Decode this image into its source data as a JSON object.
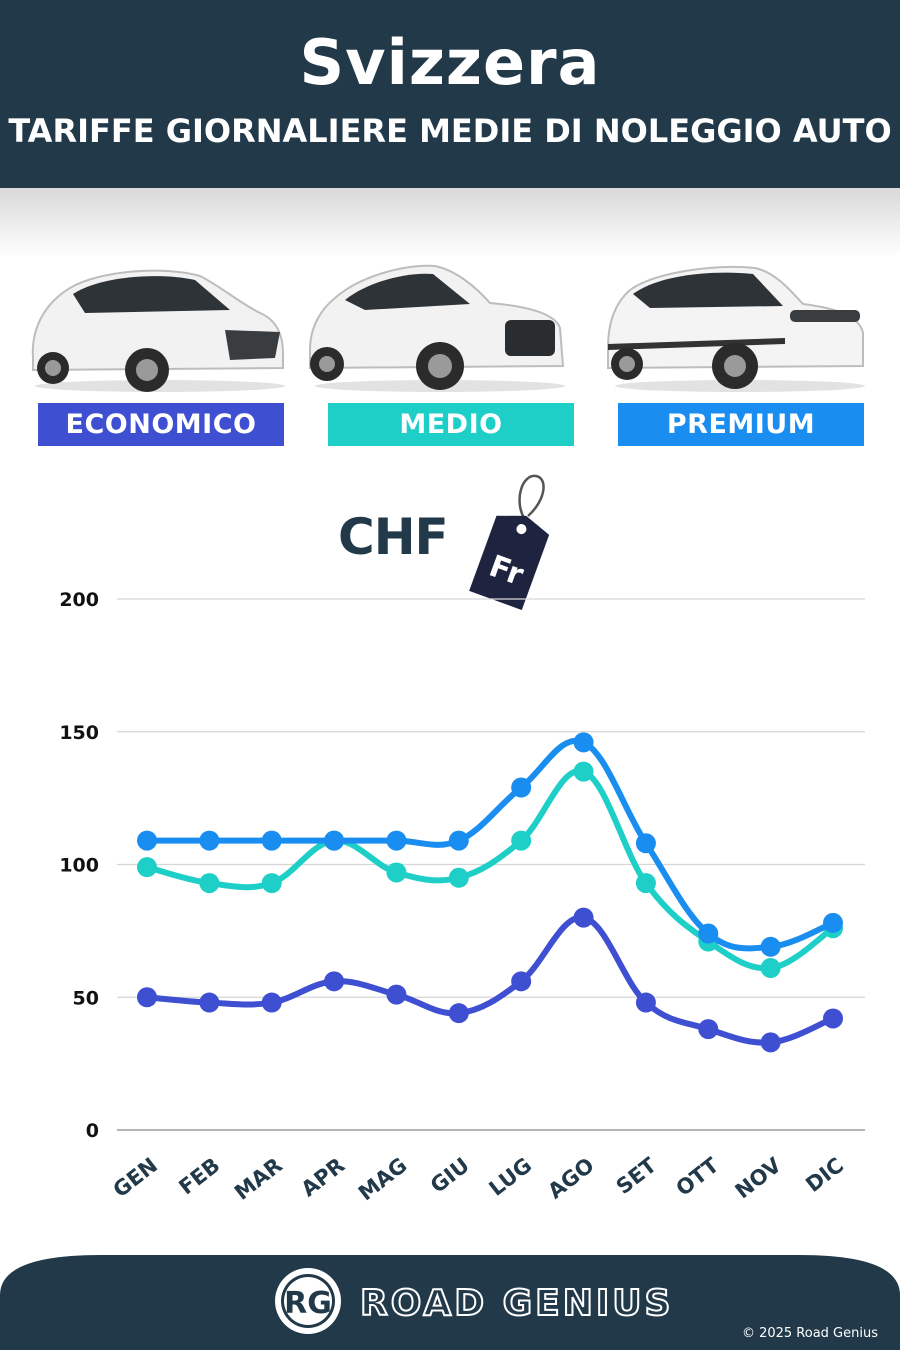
{
  "header": {
    "title": "Svizzera",
    "subtitle": "TARIFFE GIORNALIERE MEDIE DI NOLEGGIO AUTO"
  },
  "categories": [
    {
      "label": "ECONOMICO",
      "color": "#3f4fd1"
    },
    {
      "label": "MEDIO",
      "color": "#1ecfc8"
    },
    {
      "label": "PREMIUM",
      "color": "#1a8df0"
    }
  ],
  "currency": {
    "code": "CHF",
    "tag_text": "Fr"
  },
  "chart_data": {
    "type": "line",
    "x": [
      "GEN",
      "FEB",
      "MAR",
      "APR",
      "MAG",
      "GIU",
      "LUG",
      "AGO",
      "SET",
      "OTT",
      "NOV",
      "DIC"
    ],
    "yticks": [
      "0",
      "50",
      "100",
      "150",
      "200"
    ],
    "ylim": [
      0,
      200
    ],
    "grid": true,
    "series": [
      {
        "name": "ECONOMICO",
        "color": "#3f4fd1",
        "values": [
          50,
          48,
          48,
          56,
          51,
          44,
          56,
          80,
          48,
          38,
          33,
          42
        ]
      },
      {
        "name": "MEDIO",
        "color": "#1ecfc8",
        "values": [
          99,
          93,
          93,
          109,
          97,
          95,
          109,
          135,
          93,
          71,
          61,
          76
        ]
      },
      {
        "name": "PREMIUM",
        "color": "#1a8df0",
        "values": [
          109,
          109,
          109,
          109,
          109,
          109,
          129,
          146,
          108,
          74,
          69,
          78
        ]
      }
    ]
  },
  "footer": {
    "logo_text": "RG",
    "brand": "ROAD GENIUS",
    "copyright": "© 2025 Road Genius"
  }
}
